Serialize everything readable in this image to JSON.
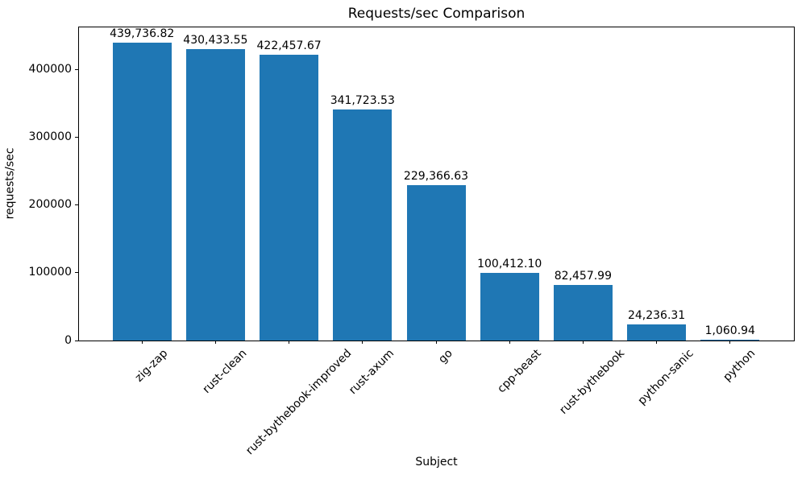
{
  "chart_data": {
    "type": "bar",
    "title": "Requests/sec Comparison",
    "xlabel": "Subject",
    "ylabel": "requests/sec",
    "categories": [
      "zig-zap",
      "rust-clean",
      "rust-bythebook-improved",
      "rust-axum",
      "go",
      "cpp-beast",
      "rust-bythebook",
      "python-sanic",
      "python"
    ],
    "values": [
      439736.82,
      430433.55,
      422457.67,
      341723.53,
      229366.63,
      100412.1,
      82457.99,
      24236.31,
      1060.94
    ],
    "value_labels": [
      "439,736.82",
      "430,433.55",
      "422,457.67",
      "341,723.53",
      "229,366.63",
      "100,412.10",
      "82,457.99",
      "24,236.31",
      "1,060.94"
    ],
    "yticks": [
      0,
      100000,
      200000,
      300000,
      400000
    ],
    "ytick_labels": [
      "0",
      "100000",
      "200000",
      "300000",
      "400000"
    ],
    "ylim": [
      0,
      464000
    ],
    "xtick_rotation_deg": 45,
    "bar_color": "#1f77b4",
    "text_color": "#000000",
    "background_color": "#ffffff",
    "grid": false,
    "legend": "none"
  }
}
